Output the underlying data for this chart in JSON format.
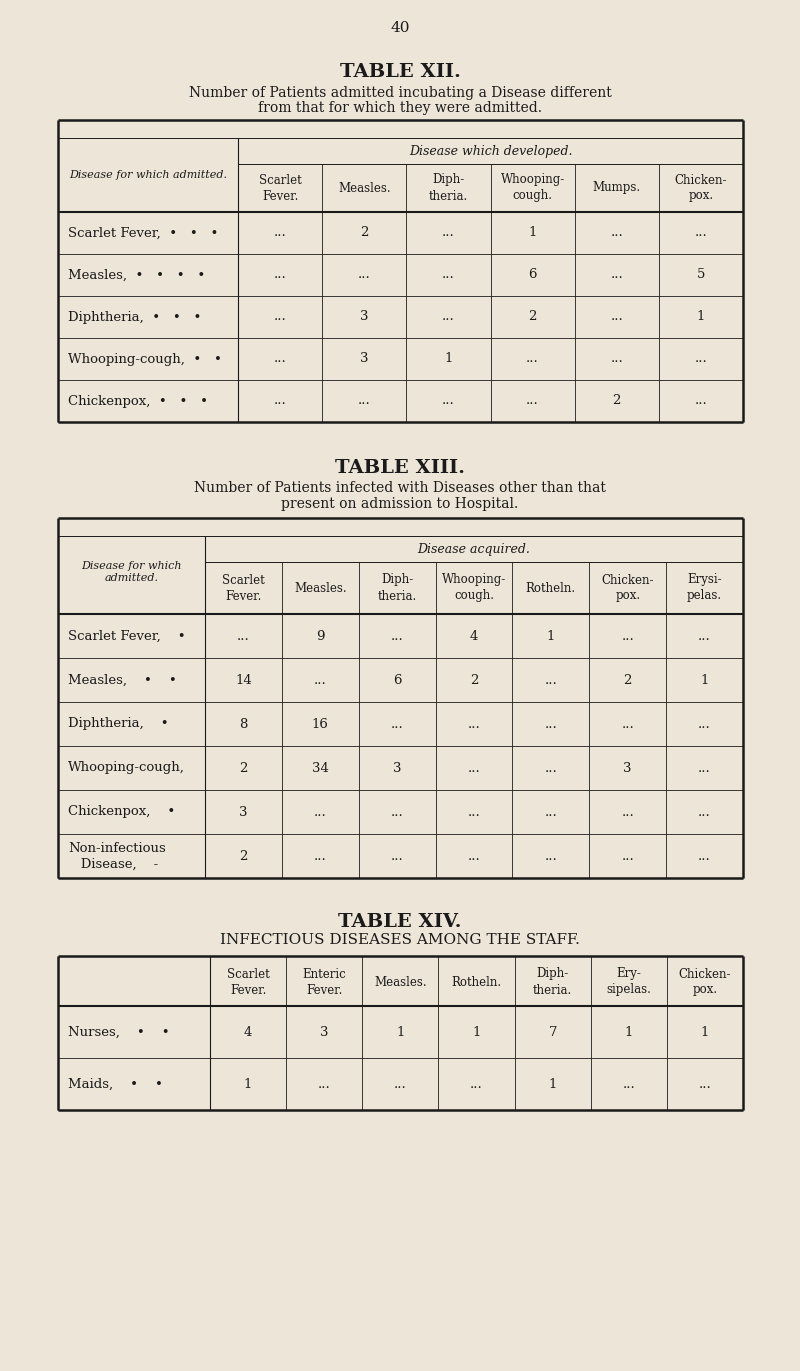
{
  "bg_color": "#ede5d8",
  "text_color": "#1a1a1a",
  "page_number": "40",
  "table12": {
    "title": "TABLE XII.",
    "subtitle1": "Number of Patients admitted incubating a Disease different",
    "subtitle2": "from that for which they were admitted.",
    "col_header_group": "Disease which developed.",
    "row_header": "Disease for which admitted.",
    "col_headers": [
      "Scarlet\nFever.",
      "Measles.",
      "Diph-\ntheria.",
      "Whooping-\ncough.",
      "Mumps.",
      "Chicken-\npox."
    ],
    "rows": [
      [
        "Scarlet Fever,  •   •   •",
        "...",
        "2",
        "...",
        "1",
        "...",
        "..."
      ],
      [
        "Measles,  •   •   •   •",
        "...",
        "...",
        "...",
        "6",
        "...",
        "5"
      ],
      [
        "Diphtheria,  •   •   •",
        "...",
        "3",
        "...",
        "2",
        "...",
        "1"
      ],
      [
        "Whooping-cough,  •   •",
        "...",
        "3",
        "1",
        "...",
        "...",
        "..."
      ],
      [
        "Chickenpox,  •   •   •",
        "...",
        "...",
        "...",
        "...",
        "2",
        "..."
      ]
    ]
  },
  "table13": {
    "title": "TABLE XIII.",
    "subtitle1": "Number of Patients infected with Diseases other than that",
    "subtitle2": "present on admission to Hospital.",
    "col_header_group": "Disease acquired.",
    "row_header_line1": "Disease for which",
    "row_header_line2": "admitted.",
    "col_headers": [
      "Scarlet\nFever.",
      "Measles.",
      "Diph-\ntheria.",
      "Whooping-\ncough.",
      "Rotheln.",
      "Chicken-\npox.",
      "Erysi-\npelas."
    ],
    "rows": [
      [
        "Scarlet Fever,    •",
        "...",
        "9",
        "...",
        "4",
        "1",
        "...",
        "..."
      ],
      [
        "Measles,    •    •",
        "14",
        "...",
        "6",
        "2",
        "...",
        "2",
        "1"
      ],
      [
        "Diphtheria,    •",
        "8",
        "16",
        "...",
        "...",
        "...",
        "...",
        "..."
      ],
      [
        "Whooping-cough,",
        "2",
        "34",
        "3",
        "...",
        "...",
        "3",
        "..."
      ],
      [
        "Chickenpox,    •",
        "3",
        "...",
        "...",
        "...",
        "...",
        "...",
        "..."
      ],
      [
        "Non-infectious\n   Disease,    •",
        "2",
        "...",
        "...",
        "...",
        "...",
        "...",
        "..."
      ]
    ]
  },
  "table14": {
    "title": "TABLE XIV.",
    "subtitle1": "INFECTIOUS DISEASES AMONG THE STAFF.",
    "col_headers": [
      "Scarlet\nFever.",
      "Enteric\nFever.",
      "Measles.",
      "Rotheln.",
      "Diph-\ntheria.",
      "Ery-\nsipelas.",
      "Chicken-\npox."
    ],
    "rows": [
      [
        "Nurses,    •    •",
        "4",
        "3",
        "1",
        "1",
        "7",
        "1",
        "1"
      ],
      [
        "Maids,    •    •",
        "1",
        "...",
        "...",
        "...",
        "1",
        "...",
        "..."
      ]
    ]
  }
}
